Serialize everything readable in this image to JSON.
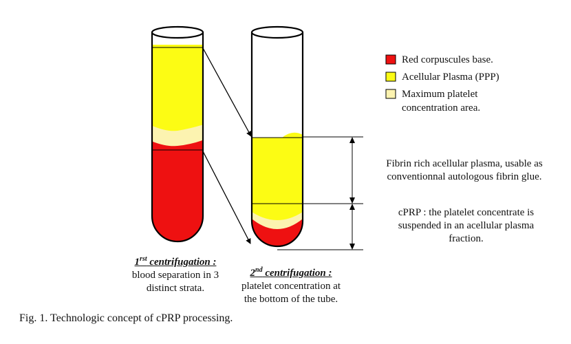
{
  "colors": {
    "red": "#ee1111",
    "yellow": "#fcfc14",
    "pale_yellow": "#fcf3b0",
    "outline": "#000000"
  },
  "legend": [
    {
      "color_key": "red",
      "label": "Red corpuscules base."
    },
    {
      "color_key": "yellow",
      "label": "Acellular Plasma (PPP)"
    },
    {
      "color_key": "pale_yellow",
      "label": "Maximum platelet",
      "label_line2": "concentration area."
    }
  ],
  "annotations": {
    "upper": {
      "line1": "Fibrin rich acellular plasma, usable as",
      "line2": "conventionnal autologous fibrin glue."
    },
    "lower": {
      "line1": "cPRP : the platelet concentrate is",
      "line2": "suspended in an acellular plasma",
      "line3": "fraction."
    }
  },
  "step1": {
    "title_num": "1",
    "title_sup": "rst",
    "title_rest": " centrifugation :",
    "line1": "blood separation in 3",
    "line2": "distinct strata."
  },
  "step2": {
    "title_num": "2",
    "title_sup": "nd",
    "title_rest": " centrifugation :",
    "line1": "platelet concentration at",
    "line2": "the bottom of the tube."
  },
  "caption": "Fig. 1.  Technologic concept of cPRP processing."
}
